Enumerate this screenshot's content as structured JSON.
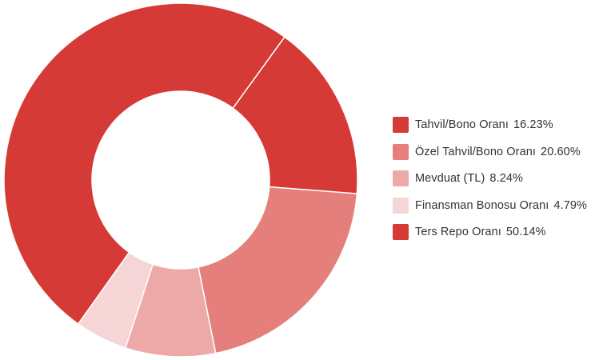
{
  "chart_data": {
    "type": "pie",
    "variant": "donut",
    "title": "",
    "slices": [
      {
        "label": "Tahvil/Bono Oranı",
        "value": 16.23,
        "display": "16.23%",
        "color": "#d63a36"
      },
      {
        "label": "Özel Tahvil/Bono Oranı",
        "value": 20.6,
        "display": "20.60%",
        "color": "#e57f7c"
      },
      {
        "label": "Mevduat (TL)",
        "value": 8.24,
        "display": "8.24%",
        "color": "#eda9a8"
      },
      {
        "label": "Finansman Bonosu Oranı",
        "value": 4.79,
        "display": "4.79%",
        "color": "#f5d5d5"
      },
      {
        "label": "Ters Repo Oranı",
        "value": 50.14,
        "display": "50.14%",
        "color": "#d63a36"
      }
    ],
    "start_angle_deg": 36,
    "direction": "clockwise",
    "legend_position": "right"
  }
}
